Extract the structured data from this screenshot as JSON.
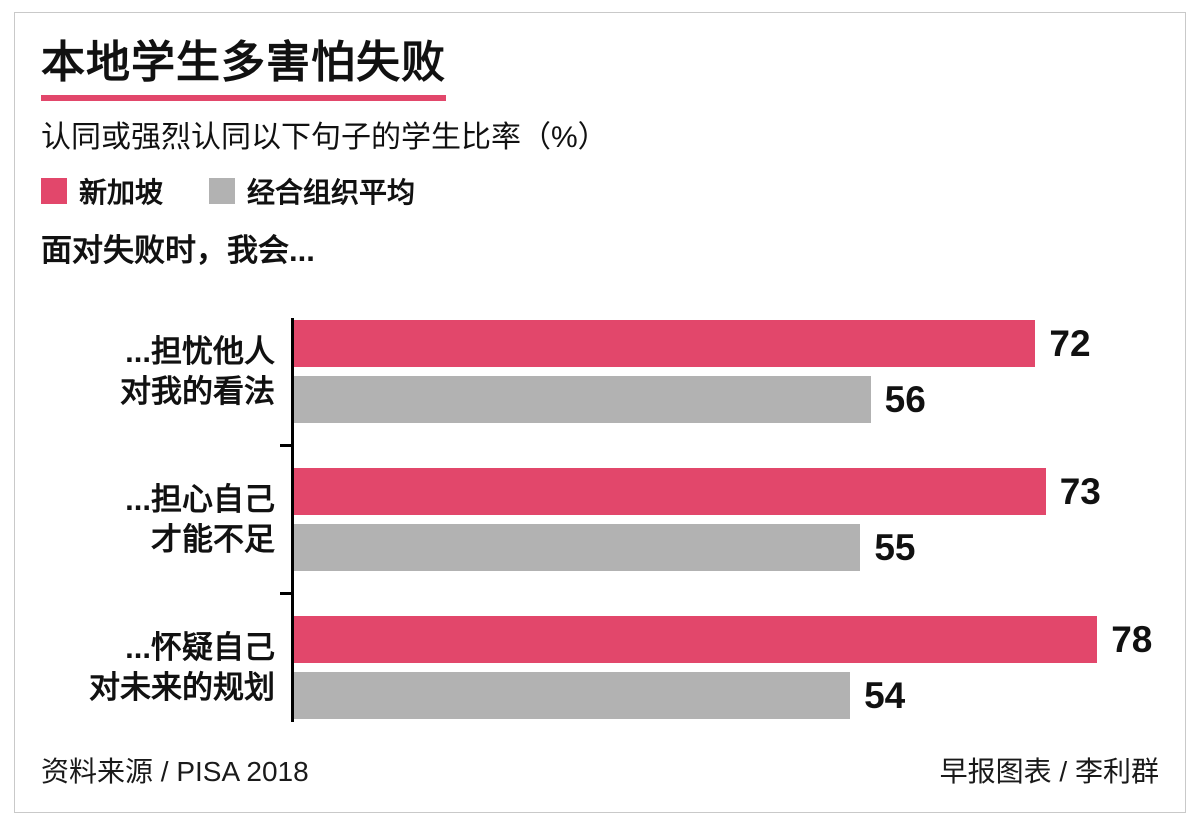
{
  "colors": {
    "singapore": "#e2476b",
    "oecd": "#b2b2b2",
    "axis": "#000000",
    "text": "#111111"
  },
  "header": {
    "title": "本地学生多害怕失败",
    "subtitle": "认同或强烈认同以下句子的学生比率（%）"
  },
  "legend": [
    {
      "label": "新加坡"
    },
    {
      "label": "经合组织平均"
    }
  ],
  "section_title": "面对失败时，我会...",
  "chart_data": {
    "type": "bar",
    "orientation": "horizontal",
    "unit": "%",
    "title": "本地学生多害怕失败",
    "subtitle": "认同或强烈认同以下句子的学生比率（%）",
    "categories": [
      {
        "line1": "...担忧他人",
        "line2": "对我的看法"
      },
      {
        "line1": "...担心自己",
        "line2": "才能不足"
      },
      {
        "line1": "...怀疑自己",
        "line2": "对未来的规划"
      }
    ],
    "series": [
      {
        "name": "新加坡",
        "values": [
          72,
          73,
          78
        ]
      },
      {
        "name": "经合组织平均",
        "values": [
          56,
          55,
          54
        ]
      }
    ],
    "xlim": [
      0,
      84
    ],
    "grid": false,
    "legend_position": "top"
  },
  "footer": {
    "source": "资料来源 / PISA 2018",
    "credit": "早报图表 / 李利群"
  }
}
